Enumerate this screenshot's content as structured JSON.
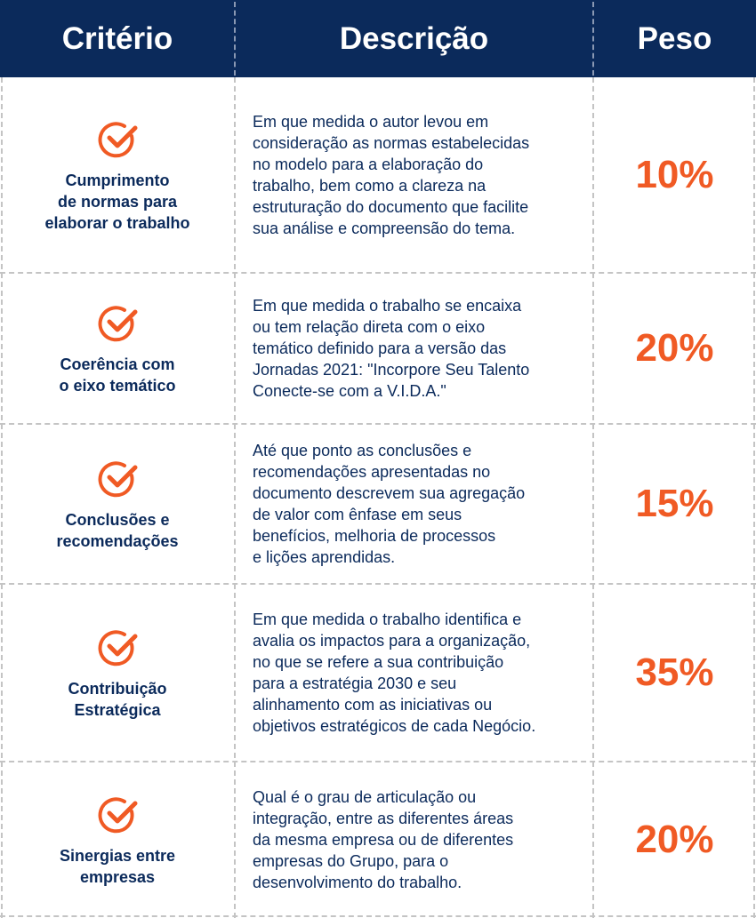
{
  "header": {
    "criterio": "Critério",
    "descricao": "Descrição",
    "peso": "Peso"
  },
  "colors": {
    "navy": "#0b2a5b",
    "orange": "#f05a24",
    "divider": "#c4c4c4"
  },
  "rows": [
    {
      "icon": "check-circle-icon",
      "criterion": "Cumprimento\nde normas para\nelaborar o trabalho",
      "description": "Em que medida o autor levou em\nconsideração as normas estabelecidas\nno modelo para a elaboração do\ntrabalho, bem como a clareza na\nestruturação do documento que facilite\nsua análise e compreensão do tema.",
      "weight": "10%"
    },
    {
      "icon": "check-circle-icon",
      "criterion": "Coerência com\no eixo temático",
      "description": "Em que medida o trabalho se encaixa\nou tem relação direta com o eixo\ntemático definido para a versão das\nJornadas 2021: \"Incorpore Seu Talento\nConecte-se com a V.I.D.A.\"",
      "weight": "20%"
    },
    {
      "icon": "check-circle-icon",
      "criterion": "Conclusões e\nrecomendações",
      "description": "Até que ponto as conclusões e\nrecomendações apresentadas no\ndocumento descrevem sua agregação\nde valor com ênfase em seus\nbenefícios, melhoria de processos\ne lições aprendidas.",
      "weight": "15%"
    },
    {
      "icon": "check-circle-icon",
      "criterion": "Contribuição\nEstratégica",
      "description": "Em que medida o trabalho identifica e\navalia os impactos para a organização,\nno que se refere a sua contribuição\npara a estratégia 2030 e seu\nalinhamento com as iniciativas ou\nobjetivos estratégicos de cada Negócio.",
      "weight": "35%"
    },
    {
      "icon": "check-circle-icon",
      "criterion": "Sinergias entre\nempresas",
      "description": "Qual é o grau de articulação ou\nintegração, entre as diferentes áreas\nda mesma empresa ou de diferentes\nempresas do Grupo, para o\ndesenvolvimento do trabalho.",
      "weight": "20%"
    }
  ]
}
